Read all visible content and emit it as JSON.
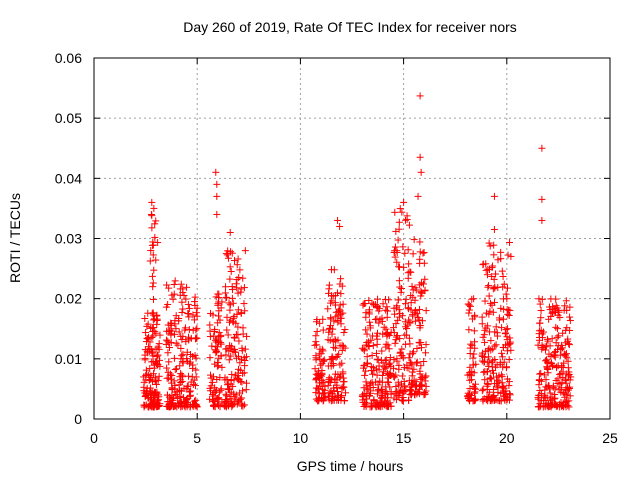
{
  "chart_data": {
    "type": "scatter",
    "title": "Day 260 of 2019, Rate Of TEC Index for receiver nors",
    "xlabel": "GPS time / hours",
    "ylabel": "ROTI / TECUs",
    "xlim": [
      0,
      25
    ],
    "ylim": [
      0,
      0.06
    ],
    "x_ticks": [
      0,
      5,
      10,
      15,
      20,
      25
    ],
    "x_tick_labels": [
      "0",
      "5",
      "10",
      "15",
      "20",
      "25"
    ],
    "y_ticks": [
      0,
      0.01,
      0.02,
      0.03,
      0.04,
      0.05,
      0.06
    ],
    "y_tick_labels": [
      "0",
      "0.01",
      "0.02",
      "0.03",
      "0.04",
      "0.05",
      "0.06"
    ],
    "grid": true,
    "marker": "plus",
    "marker_color": "#ff0000",
    "clusters": [
      {
        "x": [
          2.4,
          3.2
        ],
        "y": [
          0.002,
          0.018
        ]
      },
      {
        "x": [
          2.7,
          3.1
        ],
        "y": [
          0.002,
          0.036
        ]
      },
      {
        "x": [
          3.5,
          5.0
        ],
        "y": [
          0.002,
          0.023
        ]
      },
      {
        "x": [
          5.6,
          6.2
        ],
        "y": [
          0.002,
          0.021
        ]
      },
      {
        "x": [
          6.3,
          7.4
        ],
        "y": [
          0.002,
          0.028
        ]
      },
      {
        "x": [
          10.7,
          11.2
        ],
        "y": [
          0.003,
          0.017
        ]
      },
      {
        "x": [
          11.3,
          12.2
        ],
        "y": [
          0.003,
          0.025
        ]
      },
      {
        "x": [
          13.0,
          14.4
        ],
        "y": [
          0.002,
          0.02
        ]
      },
      {
        "x": [
          14.5,
          15.3
        ],
        "y": [
          0.003,
          0.036
        ]
      },
      {
        "x": [
          15.3,
          16.1
        ],
        "y": [
          0.004,
          0.03
        ]
      },
      {
        "x": [
          18.1,
          18.5
        ],
        "y": [
          0.003,
          0.02
        ]
      },
      {
        "x": [
          18.8,
          20.2
        ],
        "y": [
          0.003,
          0.03
        ]
      },
      {
        "x": [
          21.5,
          23.1
        ],
        "y": [
          0.002,
          0.02
        ]
      }
    ],
    "highlighted_points": [
      {
        "x": 2.8,
        "y": 0.036
      },
      {
        "x": 2.9,
        "y": 0.035
      },
      {
        "x": 2.75,
        "y": 0.028
      },
      {
        "x": 5.9,
        "y": 0.041
      },
      {
        "x": 5.95,
        "y": 0.039
      },
      {
        "x": 5.95,
        "y": 0.037
      },
      {
        "x": 5.95,
        "y": 0.034
      },
      {
        "x": 6.6,
        "y": 0.031
      },
      {
        "x": 11.8,
        "y": 0.033
      },
      {
        "x": 11.9,
        "y": 0.032
      },
      {
        "x": 15.0,
        "y": 0.036
      },
      {
        "x": 15.8,
        "y": 0.0537
      },
      {
        "x": 15.8,
        "y": 0.0435
      },
      {
        "x": 15.85,
        "y": 0.041
      },
      {
        "x": 15.7,
        "y": 0.037
      },
      {
        "x": 19.4,
        "y": 0.037
      },
      {
        "x": 19.4,
        "y": 0.0315
      },
      {
        "x": 21.7,
        "y": 0.045
      },
      {
        "x": 21.7,
        "y": 0.0365
      },
      {
        "x": 21.7,
        "y": 0.033
      }
    ]
  }
}
